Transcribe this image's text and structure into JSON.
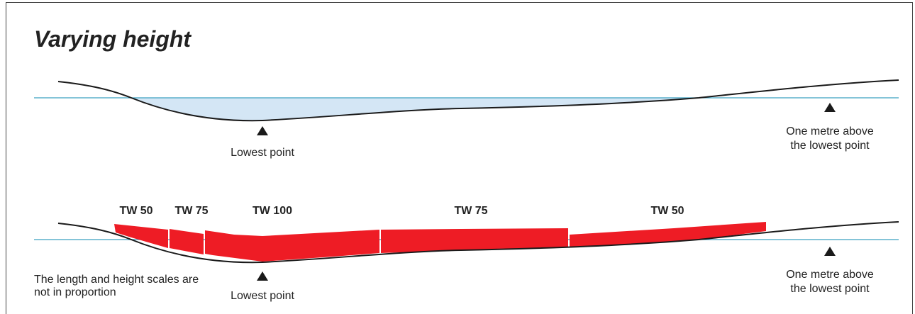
{
  "title": "Varying height",
  "top_panel": {
    "lowest_label": "Lowest point",
    "above_label": "One metre above the lowest point"
  },
  "bottom_panel": {
    "segments": [
      {
        "label": "TW 50"
      },
      {
        "label": "TW 75"
      },
      {
        "label": "TW 100"
      },
      {
        "label": "TW 75"
      },
      {
        "label": "TW 50"
      }
    ],
    "lowest_label": "Lowest point",
    "above_label": "One metre above the lowest point",
    "note": "The length and height scales are not in proportion"
  },
  "colors": {
    "water_line": "#3aa0c0",
    "water_fill": "#d4e6f5",
    "wall_red": "#ee1c25",
    "terrain": "#1a1a1a"
  }
}
